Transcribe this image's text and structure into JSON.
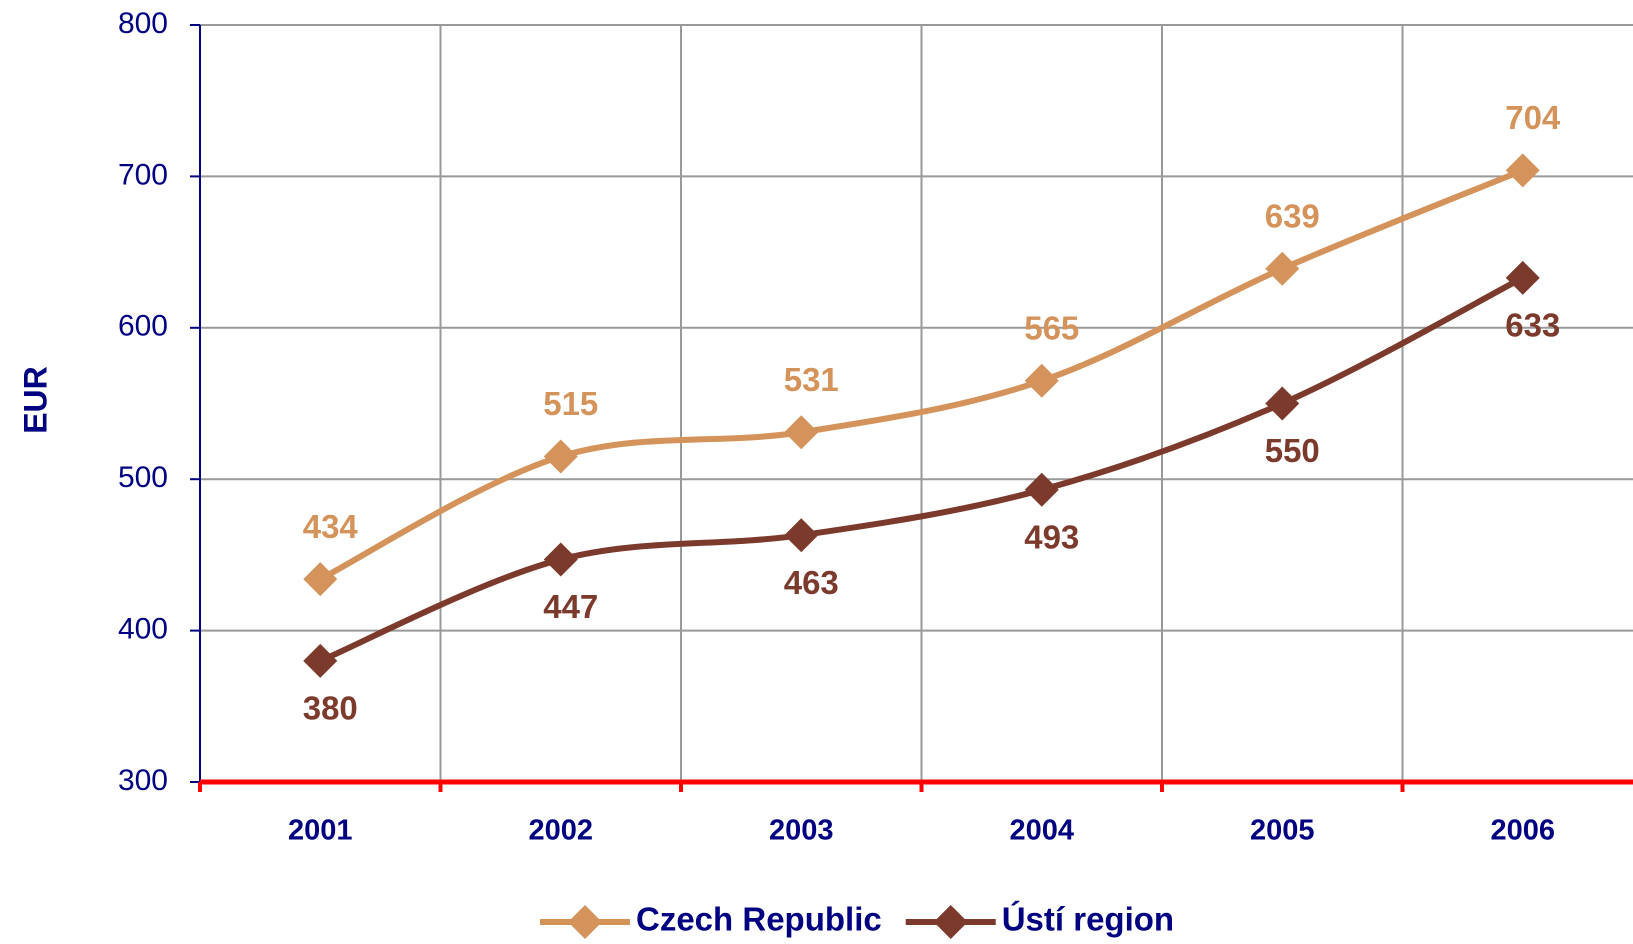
{
  "chart_data": {
    "type": "line",
    "y_label": "EUR",
    "categories": [
      "2001",
      "2002",
      "2003",
      "2004",
      "2005",
      "2006"
    ],
    "series": [
      {
        "name": "Czech Republic",
        "color": "#d4935a",
        "values": [
          434,
          515,
          531,
          565,
          639,
          704
        ]
      },
      {
        "name": "Ústí region",
        "color": "#7b3a2c",
        "values": [
          380,
          447,
          463,
          493,
          550,
          633
        ]
      }
    ],
    "ylim": [
      300,
      800
    ],
    "yticks": [
      300,
      400,
      500,
      600,
      700,
      800
    ],
    "grid": true,
    "legend": "bottom"
  }
}
